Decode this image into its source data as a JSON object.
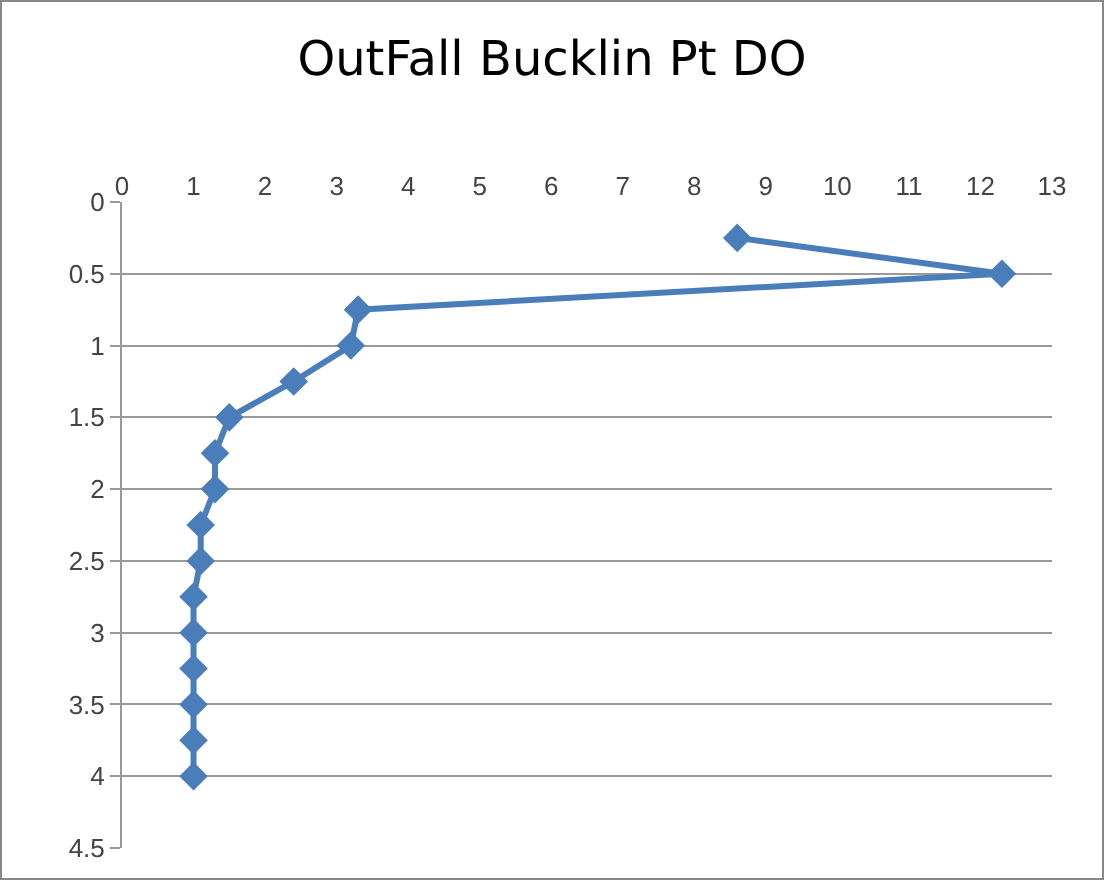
{
  "chart_data": {
    "type": "line",
    "title": "OutFall Bucklin Pt DO",
    "x": [
      8.6,
      12.3,
      3.3,
      3.2,
      2.4,
      1.5,
      1.3,
      1.3,
      1.1,
      1.1,
      1.0,
      1.0,
      1.0,
      1.0,
      1.0,
      1.0
    ],
    "series": [
      {
        "color": "#4a7ebb",
        "values": [
          0.25,
          0.5,
          0.75,
          1,
          1.25,
          1.5,
          1.75,
          2,
          2.25,
          2.5,
          2.75,
          3,
          3.25,
          3.5,
          3.75,
          4
        ]
      }
    ],
    "xlim": [
      0,
      13
    ],
    "xticks": [
      0,
      1,
      2,
      3,
      4,
      5,
      6,
      7,
      8,
      9,
      10,
      11,
      12,
      13
    ],
    "ylim": [
      4.5,
      0
    ],
    "yticks": [
      0,
      0.5,
      1,
      1.5,
      2,
      2.5,
      3,
      3.5,
      4,
      4.5
    ],
    "grid": "y",
    "legend": false,
    "marker": "diamond",
    "line_style": "solid"
  }
}
